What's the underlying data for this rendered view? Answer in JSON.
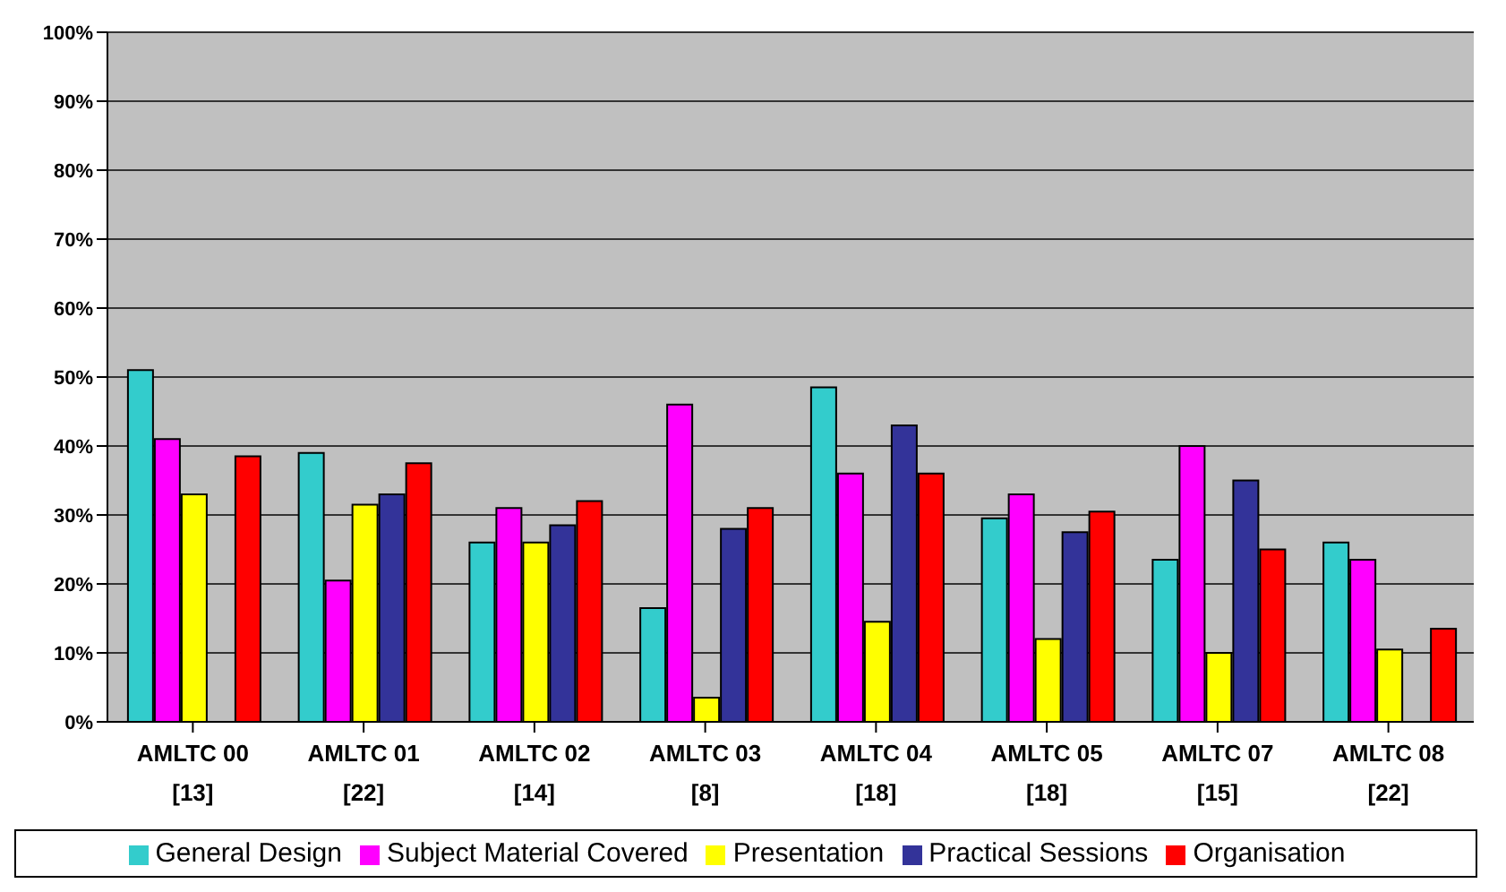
{
  "chart_data": {
    "type": "bar",
    "categories": [
      "AMLTC 00\n[13]",
      "AMLTC 01\n[22]",
      "AMLTC 02\n[14]",
      "AMLTC 03\n[8]",
      "AMLTC 04\n[18]",
      "AMLTC 05\n[18]",
      "AMLTC 07\n[15]",
      "AMLTC 08\n[22]"
    ],
    "series": [
      {
        "name": "General Design",
        "color": "#33cccc",
        "values": [
          51,
          39,
          26,
          16.5,
          48.5,
          29.5,
          23.5,
          26
        ]
      },
      {
        "name": "Subject Material Covered",
        "color": "#ff00ff",
        "values": [
          41,
          20.5,
          31,
          46,
          36,
          33,
          40,
          23.5
        ]
      },
      {
        "name": "Presentation",
        "color": "#ffff00",
        "values": [
          33,
          31.5,
          26,
          3.5,
          14.5,
          12,
          10,
          10.5
        ]
      },
      {
        "name": "Practical Sessions",
        "color": "#333399",
        "values": [
          0,
          33,
          28.5,
          28,
          43,
          27.5,
          35,
          0
        ]
      },
      {
        "name": "Organisation",
        "color": "#ff0000",
        "values": [
          38.5,
          37.5,
          32,
          31,
          36,
          30.5,
          25,
          13.5
        ]
      }
    ],
    "ylim": [
      0,
      100
    ],
    "yticks": [
      {
        "value": 0,
        "label": "0%"
      },
      {
        "value": 10,
        "label": "10%"
      },
      {
        "value": 20,
        "label": "20%"
      },
      {
        "value": 30,
        "label": "30%"
      },
      {
        "value": 40,
        "label": "40%"
      },
      {
        "value": 50,
        "label": "50%"
      },
      {
        "value": 60,
        "label": "60%"
      },
      {
        "value": 70,
        "label": "70%"
      },
      {
        "value": 80,
        "label": "80%"
      },
      {
        "value": 90,
        "label": "90%"
      },
      {
        "value": 100,
        "label": "100%"
      }
    ],
    "grid": "y",
    "legend": "bottom"
  }
}
